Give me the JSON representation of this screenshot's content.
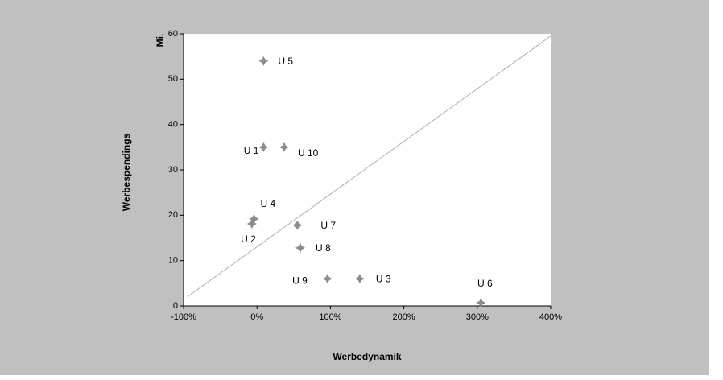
{
  "chart_data": {
    "type": "scatter",
    "x_label": "Werbedynamik",
    "y_label": "Werbespendings",
    "y_unit": "Mi.",
    "color": "#8c8c8c",
    "xlim": [
      -100,
      400
    ],
    "ylim": [
      0,
      60
    ],
    "xticks": [
      {
        "value": -100,
        "label": "-100%"
      },
      {
        "value": 0,
        "label": "0%"
      },
      {
        "value": 100,
        "label": "100%"
      },
      {
        "value": 200,
        "label": "200%"
      },
      {
        "value": 300,
        "label": "300%"
      },
      {
        "value": 400,
        "label": "400%"
      }
    ],
    "yticks": [
      0,
      10,
      20,
      30,
      40,
      50,
      60
    ],
    "labels": [
      "U 5",
      "U 1",
      "U 10",
      "U 4",
      "U 2",
      "U 7",
      "U 8",
      "U 9",
      "U 3",
      "U 6"
    ],
    "x": [
      9,
      9,
      37,
      -4,
      -7,
      55,
      59,
      96,
      140,
      305
    ],
    "values": [
      54,
      35,
      35,
      19.2,
      18.1,
      17.8,
      12.8,
      6,
      6,
      0.7
    ],
    "diagonal": {
      "x": [
        -95,
        400
      ],
      "y": [
        2,
        59.5
      ]
    }
  }
}
